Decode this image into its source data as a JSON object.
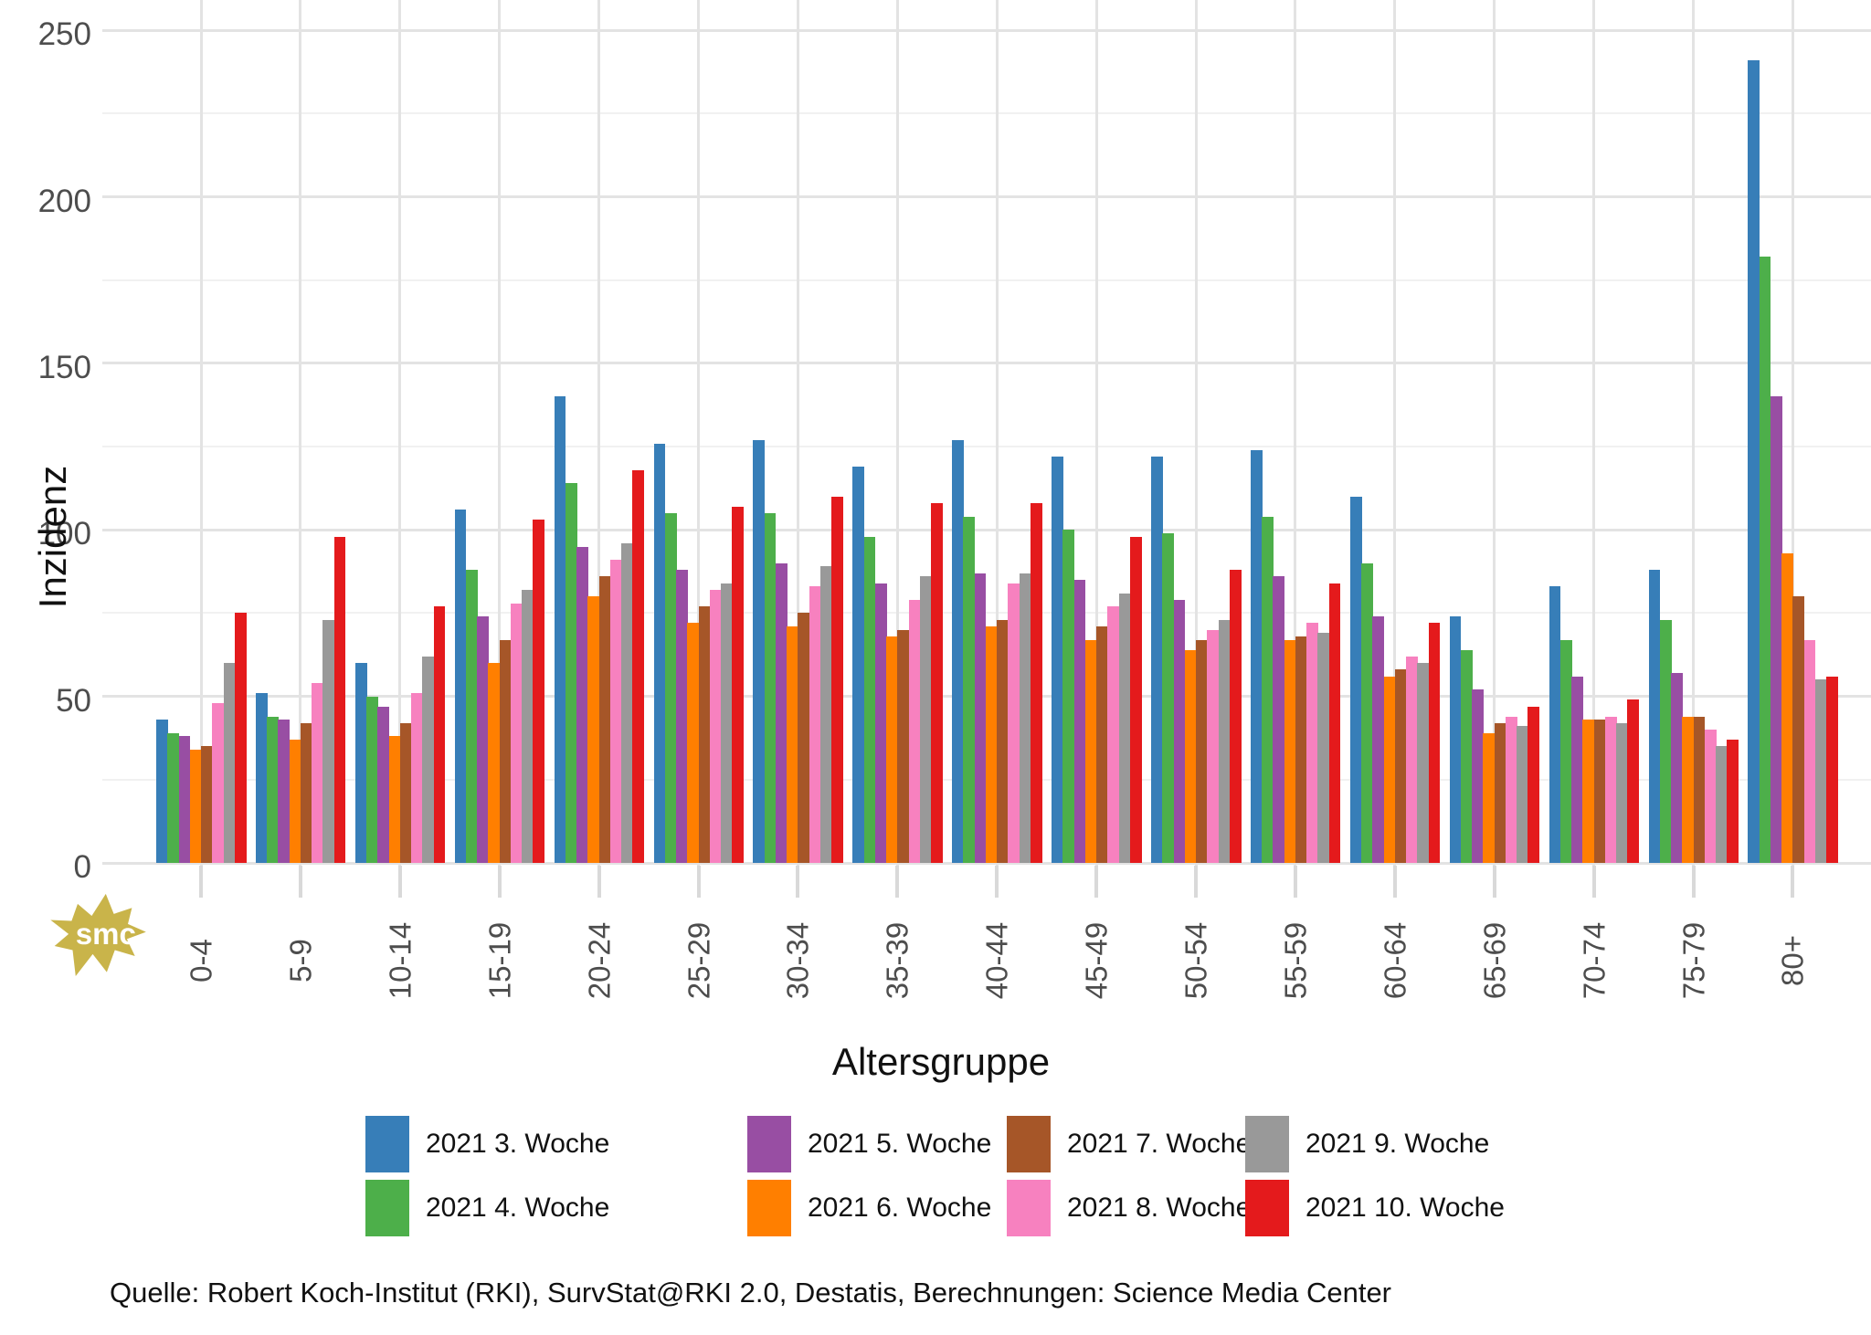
{
  "chart_data": {
    "type": "bar",
    "title": "",
    "xlabel": "Altersgruppe",
    "ylabel": "Inzidenz",
    "ylim": [
      0,
      250
    ],
    "y_ticks": [
      0,
      50,
      100,
      150,
      200,
      250
    ],
    "grid": true,
    "legend_position": "bottom",
    "categories": [
      "0-4",
      "5-9",
      "10-14",
      "15-19",
      "20-24",
      "25-29",
      "30-34",
      "35-39",
      "40-44",
      "45-49",
      "50-54",
      "55-59",
      "60-64",
      "65-69",
      "70-74",
      "75-79",
      "80+"
    ],
    "series": [
      {
        "name": "2021 3. Woche",
        "color": "#377EB8",
        "values": [
          43,
          51,
          60,
          106,
          140,
          126,
          127,
          119,
          127,
          122,
          122,
          124,
          110,
          74,
          83,
          88,
          241
        ]
      },
      {
        "name": "2021 4. Woche",
        "color": "#4DAF4A",
        "values": [
          39,
          44,
          50,
          88,
          114,
          105,
          105,
          98,
          104,
          100,
          99,
          104,
          90,
          64,
          67,
          73,
          182
        ]
      },
      {
        "name": "2021 5. Woche",
        "color": "#984EA3",
        "values": [
          38,
          43,
          47,
          74,
          95,
          88,
          90,
          84,
          87,
          85,
          79,
          86,
          74,
          52,
          56,
          57,
          140
        ]
      },
      {
        "name": "2021 6. Woche",
        "color": "#FF7F00",
        "values": [
          34,
          37,
          38,
          60,
          80,
          72,
          71,
          68,
          71,
          67,
          64,
          67,
          56,
          39,
          43,
          44,
          93
        ]
      },
      {
        "name": "2021 7. Woche",
        "color": "#A65628",
        "values": [
          35,
          42,
          42,
          67,
          86,
          77,
          75,
          70,
          73,
          71,
          67,
          68,
          58,
          42,
          43,
          44,
          80
        ]
      },
      {
        "name": "2021 8. Woche",
        "color": "#F781BF",
        "values": [
          48,
          54,
          51,
          78,
          91,
          82,
          83,
          79,
          84,
          77,
          70,
          72,
          62,
          44,
          44,
          40,
          67
        ]
      },
      {
        "name": "2021 9. Woche",
        "color": "#999999",
        "values": [
          60,
          73,
          62,
          82,
          96,
          84,
          89,
          86,
          87,
          81,
          73,
          69,
          60,
          41,
          42,
          35,
          55
        ]
      },
      {
        "name": "2021 10. Woche",
        "color": "#E41A1C",
        "values": [
          75,
          98,
          77,
          103,
          118,
          107,
          110,
          108,
          108,
          98,
          88,
          84,
          72,
          47,
          49,
          37,
          56
        ]
      }
    ]
  },
  "source_text": "Quelle: Robert Koch-Institut (RKI), SurvStat@RKI 2.0, Destatis, Berechnungen: Science Media Center",
  "watermark": {
    "text": "smc",
    "color": "#C9B44A"
  }
}
